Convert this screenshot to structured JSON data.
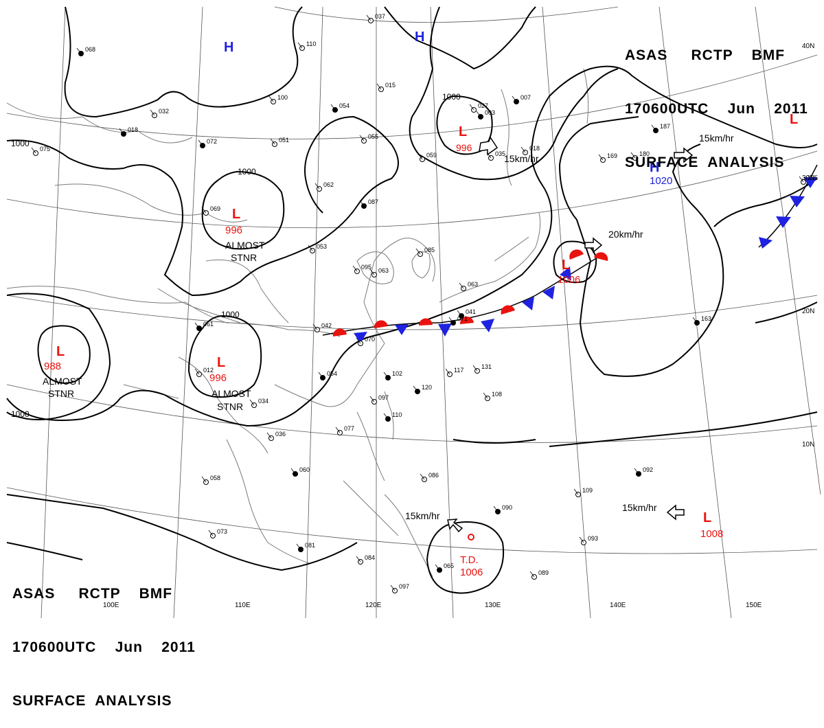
{
  "header": {
    "line1": "ASAS     RCTP    BMF",
    "line2": "170600UTC    Jun    2011",
    "line3": "SURFACE  ANALYSIS"
  },
  "colors": {
    "low": "#e8130f",
    "high": "#1f22e0",
    "isobar": "#000000",
    "coast": "#777777",
    "warm_front": "#e8130f",
    "cold_front": "#1f22e0"
  },
  "pressure_systems": [
    {
      "type": "L",
      "value": "996",
      "note": ""
    },
    {
      "type": "L",
      "value": "996",
      "note": "ALMOST STNR"
    },
    {
      "type": "L",
      "value": "988",
      "note": "ALMOST STNR"
    },
    {
      "type": "L",
      "value": "996",
      "note": "ALMOST STNR"
    },
    {
      "type": "L",
      "value": "1006",
      "note": ""
    },
    {
      "type": "L",
      "value": "1008",
      "note": ""
    },
    {
      "type": "H",
      "value": "1020",
      "note": ""
    },
    {
      "type": "H",
      "value": "",
      "note": ""
    },
    {
      "type": "H",
      "value": "",
      "note": ""
    },
    {
      "type": "L",
      "value": "",
      "note": ""
    },
    {
      "type": "T.D.",
      "value": "1006",
      "note": ""
    }
  ],
  "movement_labels": [
    "15km/hr",
    "15km/hr",
    "20km/hr",
    "15km/hr",
    "15km/hr"
  ],
  "isobar_labels": [
    "1000",
    "1000",
    "1000",
    "1000",
    "1000"
  ],
  "longitude_labels": [
    "100E",
    "110E",
    "120E",
    "130E",
    "140E",
    "150E"
  ],
  "latitude_labels": [
    "40N",
    "30N",
    "20N",
    "10N"
  ],
  "station_samples": [
    "065",
    "042",
    "070",
    "102",
    "117",
    "131",
    "120",
    "108",
    "097",
    "110",
    "077",
    "086",
    "090",
    "109",
    "093",
    "163",
    "169",
    "180",
    "187",
    "135",
    "084",
    "081",
    "073",
    "058",
    "060",
    "036",
    "034",
    "054",
    "053",
    "062",
    "087",
    "085",
    "059",
    "054",
    "015",
    "027",
    "007",
    "018",
    "055",
    "041",
    "100",
    "110",
    "068",
    "075",
    "032",
    "072",
    "051",
    "069",
    "061",
    "037",
    "035",
    "003",
    "097",
    "089",
    "092",
    "063",
    "012",
    "018",
    "095",
    "063",
    "071"
  ],
  "map_notes": {
    "almost_stnr": "ALMOST\nSTNR",
    "td": "T.D."
  }
}
